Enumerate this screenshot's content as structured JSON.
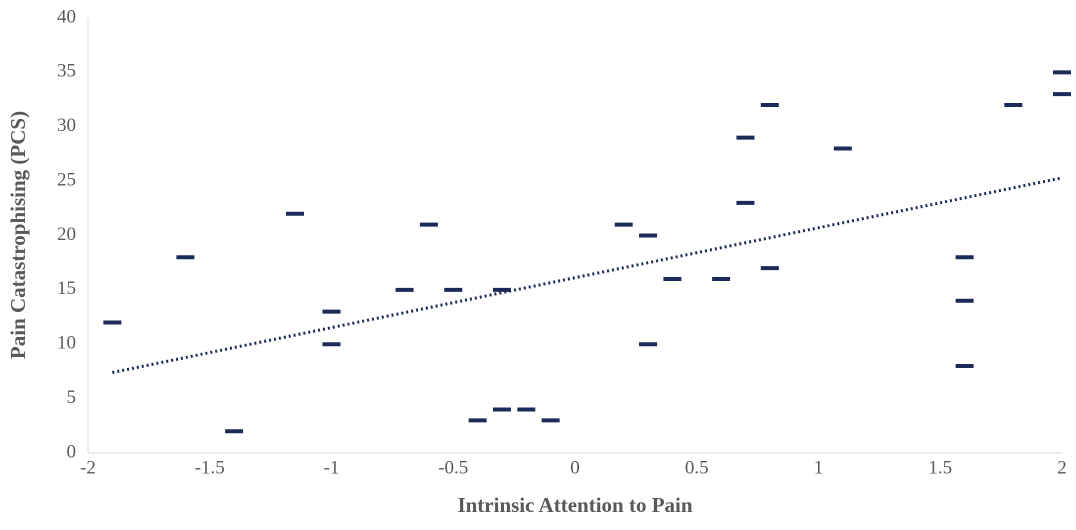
{
  "chart_data": {
    "type": "scatter",
    "x_label": "Intrinsic Attention to Pain",
    "y_label": "Pain Catastrophising (PCS)",
    "x": [
      -1.9,
      -1.6,
      -1.4,
      -1.15,
      -1.0,
      -1.0,
      -0.7,
      -0.6,
      -0.5,
      -0.4,
      -0.3,
      -0.3,
      -0.2,
      -0.1,
      0.2,
      0.3,
      0.3,
      0.4,
      0.6,
      0.7,
      0.7,
      0.8,
      0.8,
      1.1,
      1.6,
      1.6,
      1.6,
      1.8,
      2.0,
      2.0
    ],
    "values": [
      12,
      18,
      2,
      22,
      13,
      10,
      15,
      21,
      15,
      3,
      15,
      4,
      4,
      3,
      21,
      20,
      10,
      16,
      16,
      29,
      23,
      32,
      17,
      28,
      18,
      14,
      8,
      32,
      35,
      33
    ],
    "color": "#1b2a58",
    "marker": "dash",
    "trendline": {
      "x": [
        -1.9,
        2.0
      ],
      "y": [
        7.4,
        25.3
      ],
      "style": "dotted"
    },
    "xlim": [
      -2,
      2
    ],
    "xticks": [
      -2,
      -1.5,
      -1,
      -0.5,
      0,
      0.5,
      1,
      1.5,
      2
    ],
    "ylim": [
      0,
      40
    ],
    "yticks": [
      0,
      5,
      10,
      15,
      20,
      25,
      30,
      35,
      40
    ],
    "grid": false
  }
}
